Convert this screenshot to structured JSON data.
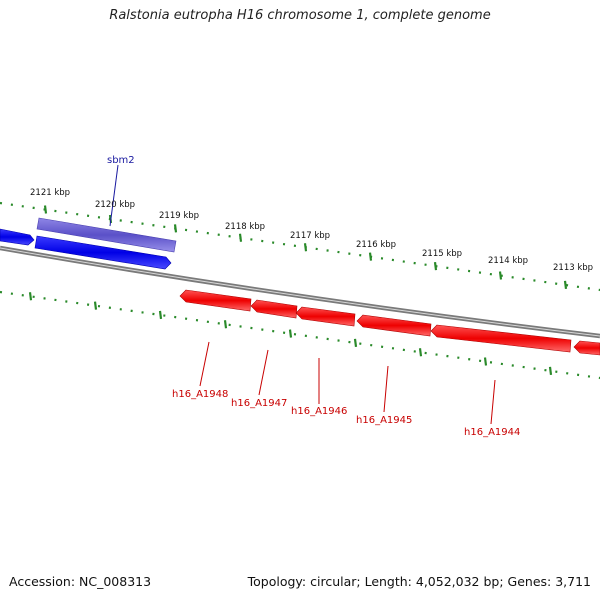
{
  "title": "Ralstonia eutropha H16 chromosome 1, complete genome",
  "footer": {
    "accession": "Accession: NC_008313",
    "summary": "Topology: circular; Length: 4,052,032 bp; Genes: 3,711"
  },
  "colors": {
    "forward_gene": "#1a1aff",
    "reverse_gene": "#ff1a1a",
    "rna_gene": "#7a70d8",
    "tick": "#2a8a2a",
    "backbone": "#8c8c8c",
    "forward_label": "#1a1aa0",
    "reverse_label": "#c80000"
  },
  "scale_labels": [
    "2121 kbp",
    "2120 kbp",
    "2119 kbp",
    "2118 kbp",
    "2117 kbp",
    "2116 kbp",
    "2115 kbp",
    "2114 kbp",
    "2113 kbp"
  ],
  "gene_labels": {
    "forward": [
      "sbm2"
    ],
    "reverse": [
      "h16_A1948",
      "h16_A1947",
      "h16_A1946",
      "h16_A1945",
      "h16_A1944"
    ]
  }
}
